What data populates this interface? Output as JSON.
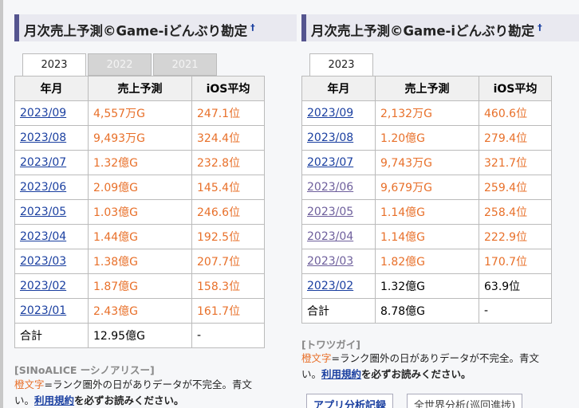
{
  "panels": [
    {
      "title": "月次売上予測©Game-iどんぶり勘定",
      "title_mark": "†",
      "tabs": [
        {
          "label": "2023",
          "active": true
        },
        {
          "label": "2022",
          "active": false
        },
        {
          "label": "2021",
          "active": false
        }
      ],
      "table": {
        "headers": [
          "年月",
          "売上予測",
          "iOS平均"
        ],
        "rows": [
          {
            "month": "2023/09",
            "sales": "4,557万G",
            "ios": "247.1位",
            "incomplete": true,
            "visited": false
          },
          {
            "month": "2023/08",
            "sales": "9,493万G",
            "ios": "324.4位",
            "incomplete": true,
            "visited": false
          },
          {
            "month": "2023/07",
            "sales": "1.32億G",
            "ios": "232.8位",
            "incomplete": true,
            "visited": false
          },
          {
            "month": "2023/06",
            "sales": "2.09億G",
            "ios": "145.4位",
            "incomplete": true,
            "visited": false
          },
          {
            "month": "2023/05",
            "sales": "1.03億G",
            "ios": "246.6位",
            "incomplete": true,
            "visited": false
          },
          {
            "month": "2023/04",
            "sales": "1.44億G",
            "ios": "192.5位",
            "incomplete": true,
            "visited": false
          },
          {
            "month": "2023/03",
            "sales": "1.38億G",
            "ios": "207.7位",
            "incomplete": true,
            "visited": false
          },
          {
            "month": "2023/02",
            "sales": "1.87億G",
            "ios": "158.3位",
            "incomplete": true,
            "visited": false
          },
          {
            "month": "2023/01",
            "sales": "2.43億G",
            "ios": "161.7位",
            "incomplete": true,
            "visited": false
          }
        ],
        "total": {
          "label": "合計",
          "sales": "12.95億G",
          "ios": "-"
        }
      },
      "game": "[SINoALICE ーシノアリスー]",
      "note": {
        "orange": "橙文字",
        "text": "=ランク圏外の日がありデータが不完全。青文",
        "line2_pre": "い。",
        "link": "利用規約",
        "line2_post": "を必ずお読みください。"
      }
    },
    {
      "title": "月次売上予測©Game-iどんぶり勘定",
      "title_mark": "†",
      "tabs": [
        {
          "label": "2023",
          "active": true
        }
      ],
      "table": {
        "headers": [
          "年月",
          "売上予測",
          "iOS平均"
        ],
        "rows": [
          {
            "month": "2023/09",
            "sales": "2,132万G",
            "ios": "460.6位",
            "incomplete": true,
            "visited": false
          },
          {
            "month": "2023/08",
            "sales": "1.20億G",
            "ios": "279.4位",
            "incomplete": true,
            "visited": false
          },
          {
            "month": "2023/07",
            "sales": "9,743万G",
            "ios": "321.7位",
            "incomplete": true,
            "visited": false
          },
          {
            "month": "2023/06",
            "sales": "9,679万G",
            "ios": "259.4位",
            "incomplete": true,
            "visited": true
          },
          {
            "month": "2023/05",
            "sales": "1.14億G",
            "ios": "258.4位",
            "incomplete": true,
            "visited": true
          },
          {
            "month": "2023/04",
            "sales": "1.14億G",
            "ios": "222.9位",
            "incomplete": true,
            "visited": true
          },
          {
            "month": "2023/03",
            "sales": "1.82億G",
            "ios": "170.7位",
            "incomplete": true,
            "visited": true
          },
          {
            "month": "2023/02",
            "sales": "1.32億G",
            "ios": "63.9位",
            "incomplete": false,
            "visited": false
          }
        ],
        "total": {
          "label": "合計",
          "sales": "8.78億G",
          "ios": "-"
        }
      },
      "game": "[トワツガイ]",
      "note": {
        "orange": "橙文字",
        "text": "=ランク圏外の日がありデータが不完全。青文",
        "line2_pre": "い。",
        "link": "利用規約",
        "line2_post": "を必ずお読みください。"
      },
      "buttons": [
        "アプリ分析記録",
        "全世界分析(巡回進捗)"
      ]
    }
  ]
}
